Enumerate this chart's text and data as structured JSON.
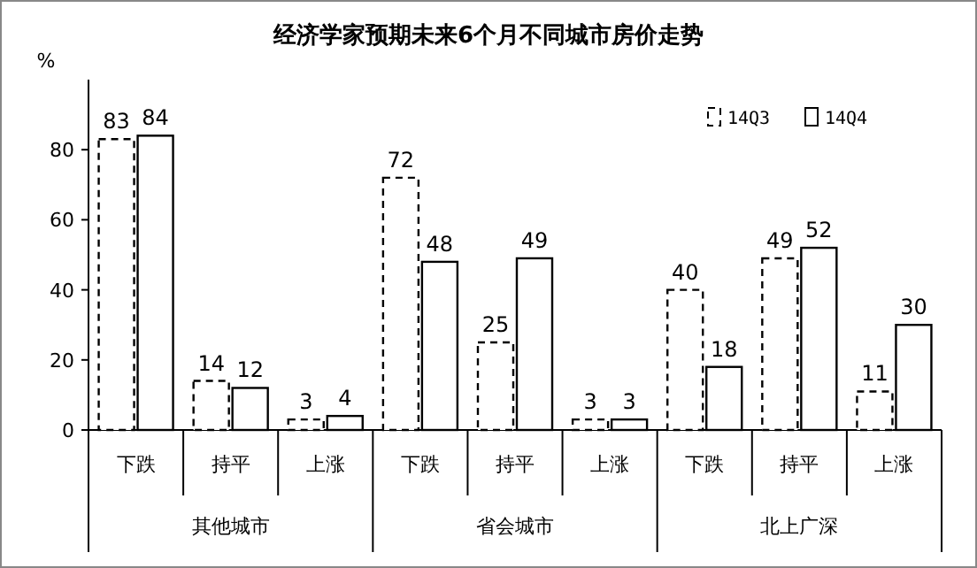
{
  "chart_data": {
    "type": "bar",
    "title": "经济学家预期未来6个月不同城市房价走势",
    "ylabel": "%",
    "categories": [
      "下跌",
      "持平",
      "上涨",
      "下跌",
      "持平",
      "上涨",
      "下跌",
      "持平",
      "上涨"
    ],
    "annotations": [
      "其他城市",
      "省会城市",
      "北上广深"
    ],
    "series": [
      {
        "name": "14Q3",
        "color": "#000000",
        "line_style": "dashed",
        "values": [
          83,
          14,
          3,
          72,
          25,
          3,
          40,
          49,
          11
        ]
      },
      {
        "name": "14Q4",
        "color": "#000000",
        "line_style": "solid",
        "values": [
          84,
          12,
          4,
          48,
          49,
          3,
          18,
          52,
          30
        ]
      }
    ],
    "ylim": [
      0,
      100
    ],
    "yticks": [
      0,
      20,
      40,
      60,
      80
    ],
    "data_labels": true,
    "legend": "top right",
    "grid": false
  }
}
